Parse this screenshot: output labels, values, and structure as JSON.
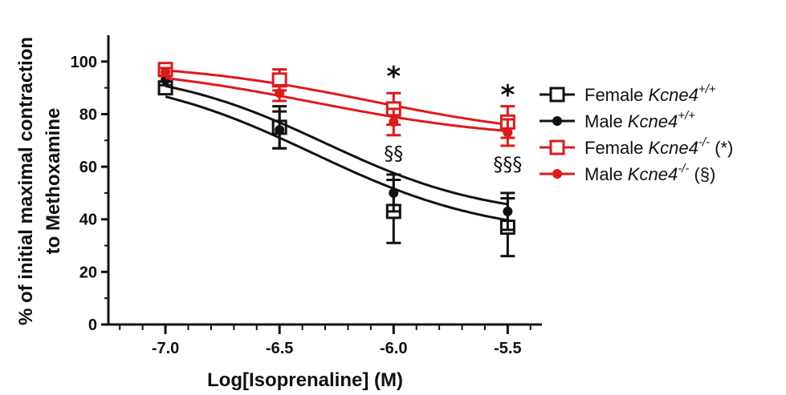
{
  "chart_data": {
    "type": "line",
    "xlabel": "Log[Isoprenaline] (M)",
    "ylabel_line1": "% of initial maximal contraction",
    "ylabel_line2": "to Methoxamine",
    "xlim": [
      -7.25,
      -5.35
    ],
    "ylim": [
      0,
      110
    ],
    "x_ticks": [
      -7.0,
      -6.5,
      -6.0,
      -5.5
    ],
    "x_tick_labels": [
      "-7.0",
      "-6.5",
      "-6.0",
      "-5.5"
    ],
    "y_ticks": [
      0,
      20,
      40,
      60,
      80,
      100
    ],
    "y_tick_labels": [
      "0",
      "20",
      "40",
      "60",
      "80",
      "100"
    ],
    "x": [
      -7.0,
      -6.5,
      -6.0,
      -5.5
    ],
    "series": [
      {
        "name": "Female Kcne4+/+",
        "label_main": "Female ",
        "label_gene": "Kcne4",
        "label_sup": "+/+",
        "label_suffix": "",
        "color": "#111111",
        "marker": "open-square",
        "values": [
          90,
          75,
          43,
          37
        ],
        "errors": [
          2,
          8,
          12,
          11
        ],
        "fit": {
          "bottom": 33,
          "top": 97,
          "logec50": -6.35,
          "hill": -1.1
        }
      },
      {
        "name": "Male Kcne4+/+",
        "label_main": "Male ",
        "label_gene": "Kcne4",
        "label_sup": "+/+",
        "label_suffix": "",
        "color": "#111111",
        "marker": "filled-circle",
        "values": [
          93,
          74,
          50,
          43
        ],
        "errors": [
          2,
          7,
          7,
          7
        ],
        "fit": {
          "bottom": 40,
          "top": 98,
          "logec50": -6.3,
          "hill": -1.2
        }
      },
      {
        "name": "Female Kcne4-/- (*)",
        "label_main": "Female ",
        "label_gene": "Kcne4",
        "label_sup": "-/-",
        "label_suffix": " (*)",
        "color": "#e0191b",
        "marker": "open-square",
        "values": [
          97,
          93,
          82,
          77
        ],
        "errors": [
          1.5,
          4,
          6,
          6
        ],
        "fit": {
          "bottom": 70,
          "top": 100,
          "logec50": -6.1,
          "hill": -1.0
        }
      },
      {
        "name": "Male Kcne4-/- (§)",
        "label_main": "Male ",
        "label_gene": "Kcne4",
        "label_sup": "-/-",
        "label_suffix": " (§)",
        "color": "#e0191b",
        "marker": "filled-circle",
        "values": [
          96,
          88,
          77,
          73
        ],
        "errors": [
          1.5,
          3,
          5,
          5
        ],
        "fit": {
          "bottom": 70,
          "top": 99,
          "logec50": -6.35,
          "hill": -1.0
        }
      }
    ],
    "annotations": [
      {
        "text": "*",
        "x": -6.0,
        "y": 95
      },
      {
        "text": "*",
        "x": -5.5,
        "y": 88
      },
      {
        "text": "§§",
        "x": -6.0,
        "y": 65
      },
      {
        "text": "§§§",
        "x": -5.5,
        "y": 61
      }
    ]
  }
}
